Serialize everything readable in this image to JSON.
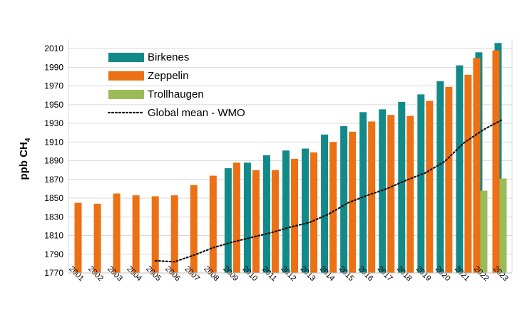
{
  "chart_data": {
    "type": "bar",
    "ylabel_main": "ppb CH",
    "ylabel_sub": "4",
    "ylim": [
      1770,
      2020
    ],
    "yticks": [
      1770,
      1790,
      1810,
      1830,
      1850,
      1870,
      1890,
      1910,
      1930,
      1950,
      1970,
      1990,
      2010
    ],
    "grid": true,
    "legend_position": "top-left",
    "categories": [
      "2001",
      "2002",
      "2003",
      "2004",
      "2005",
      "2006",
      "2007",
      "2008",
      "2009",
      "2010",
      "2011",
      "2012",
      "2013",
      "2014",
      "2015",
      "2016",
      "2017",
      "2018",
      "2019",
      "2020",
      "2021",
      "2022",
      "2023"
    ],
    "series": [
      {
        "name": "Birkenes",
        "kind": "bar",
        "color": "#138a8a",
        "values": [
          null,
          null,
          null,
          null,
          null,
          null,
          null,
          null,
          1882,
          1888,
          1896,
          1901,
          1903,
          1918,
          1927,
          1942,
          1945,
          1953,
          1961,
          1975,
          1992,
          2006,
          2016
        ]
      },
      {
        "name": "Zeppelin",
        "kind": "bar",
        "color": "#ec7014",
        "values": [
          1845,
          1844,
          1855,
          1853,
          1852,
          1853,
          1864,
          1874,
          1888,
          1880,
          1880,
          1892,
          1899,
          1910,
          1921,
          1932,
          1939,
          1938,
          1954,
          1969,
          1982,
          2000,
          2008
        ]
      },
      {
        "name": "Trollhaugen",
        "kind": "bar",
        "color": "#9bbb59",
        "values": [
          null,
          null,
          null,
          null,
          null,
          null,
          null,
          null,
          null,
          null,
          null,
          null,
          null,
          null,
          null,
          null,
          null,
          null,
          null,
          null,
          null,
          1858,
          1871
        ]
      },
      {
        "name": "Global mean - WMO",
        "kind": "line",
        "style": "dotted",
        "color": "#111111",
        "values": [
          null,
          null,
          null,
          null,
          1783,
          1782,
          1789,
          1797,
          1803,
          1808,
          1813,
          1819,
          1824,
          1833,
          1845,
          1853,
          1860,
          1869,
          1877,
          1889,
          1909,
          1923,
          1934
        ]
      }
    ]
  }
}
